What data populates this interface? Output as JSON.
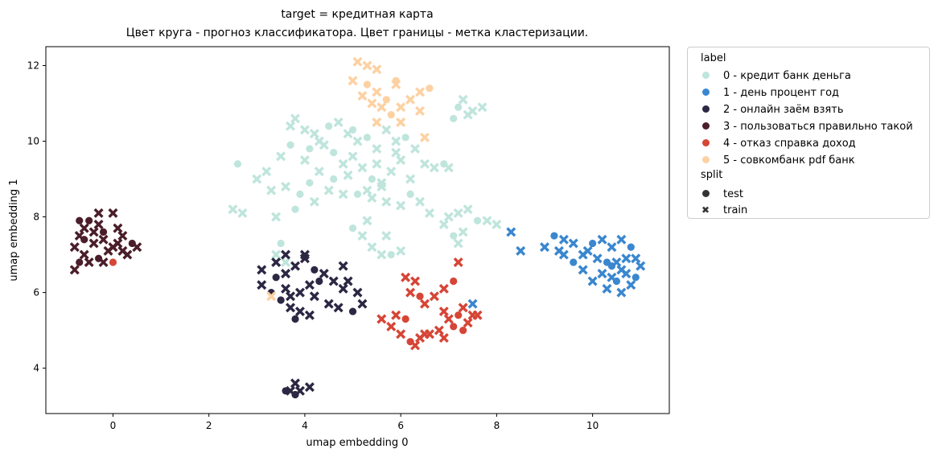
{
  "chart_data": {
    "type": "scatter",
    "title": "target = кредитная карта",
    "subtitle": "Цвет круга - прогноз классификатора. Цвет границы - метка кластеризации.",
    "xlabel": "umap embedding 0",
    "ylabel": "umap embedding 1",
    "xlim": [
      -1.4,
      11.6
    ],
    "ylim": [
      2.8,
      12.5
    ],
    "xticks": [
      "0",
      "2",
      "4",
      "6",
      "8",
      "10"
    ],
    "yticks": [
      "4",
      "6",
      "8",
      "10",
      "12"
    ],
    "grid": false,
    "legend_position": "outside right",
    "legend": {
      "label_title": "label",
      "labels": [
        {
          "text": "0 - кредит банк деньга",
          "color": "#bfe5dc"
        },
        {
          "text": "1 - день процент год",
          "color": "#3a87cf"
        },
        {
          "text": "2 - онлайн заём взять",
          "color": "#2c2743"
        },
        {
          "text": "3 - пользоваться правильно такой",
          "color": "#4a1e2a"
        },
        {
          "text": "4 - отказ справка доход",
          "color": "#d64536"
        },
        {
          "text": "5 - совкомбанк pdf банк",
          "color": "#fdd1a2"
        }
      ],
      "split_title": "split",
      "splits": [
        {
          "text": "test",
          "marker": "circle"
        },
        {
          "text": "train",
          "marker": "x"
        }
      ]
    },
    "series": [
      {
        "name": "0 - кредит банк деньга",
        "color": "#bfe5dc",
        "points": [
          [
            2.6,
            9.4
          ],
          [
            3.0,
            9.0
          ],
          [
            3.2,
            9.2
          ],
          [
            3.5,
            9.6
          ],
          [
            3.7,
            9.9
          ],
          [
            3.8,
            10.6
          ],
          [
            4.0,
            10.3
          ],
          [
            4.2,
            10.2
          ],
          [
            4.5,
            10.4
          ],
          [
            4.7,
            10.5
          ],
          [
            4.9,
            10.2
          ],
          [
            5.1,
            10.0
          ],
          [
            5.3,
            10.1
          ],
          [
            5.5,
            9.8
          ],
          [
            5.7,
            10.3
          ],
          [
            5.9,
            10.0
          ],
          [
            6.1,
            10.1
          ],
          [
            6.3,
            9.8
          ],
          [
            6.5,
            9.4
          ],
          [
            6.7,
            9.3
          ],
          [
            6.9,
            9.4
          ],
          [
            7.0,
            9.3
          ],
          [
            4.0,
            9.5
          ],
          [
            4.3,
            9.2
          ],
          [
            4.6,
            9.0
          ],
          [
            4.8,
            9.4
          ],
          [
            5.0,
            9.6
          ],
          [
            5.2,
            9.3
          ],
          [
            5.4,
            9.0
          ],
          [
            5.6,
            8.8
          ],
          [
            5.8,
            9.2
          ],
          [
            6.0,
            9.5
          ],
          [
            4.1,
            9.8
          ],
          [
            4.4,
            9.9
          ],
          [
            4.9,
            9.1
          ],
          [
            5.3,
            8.7
          ],
          [
            3.9,
            8.6
          ],
          [
            4.2,
            8.4
          ],
          [
            4.5,
            8.7
          ],
          [
            4.8,
            8.6
          ],
          [
            5.1,
            8.6
          ],
          [
            5.4,
            8.5
          ],
          [
            5.7,
            8.4
          ],
          [
            6.0,
            8.3
          ],
          [
            6.2,
            8.6
          ],
          [
            6.4,
            8.4
          ],
          [
            3.6,
            8.8
          ],
          [
            3.3,
            8.7
          ],
          [
            3.8,
            8.2
          ],
          [
            2.5,
            8.2
          ],
          [
            2.7,
            8.1
          ],
          [
            3.4,
            8.0
          ],
          [
            5.0,
            7.7
          ],
          [
            5.2,
            7.5
          ],
          [
            5.4,
            7.2
          ],
          [
            5.6,
            7.0
          ],
          [
            5.8,
            7.0
          ],
          [
            6.0,
            7.1
          ],
          [
            5.3,
            7.9
          ],
          [
            5.7,
            7.5
          ],
          [
            3.5,
            7.3
          ],
          [
            3.4,
            7.0
          ],
          [
            3.6,
            6.8
          ],
          [
            7.3,
            11.1
          ],
          [
            7.2,
            10.9
          ],
          [
            7.5,
            10.8
          ],
          [
            7.7,
            10.9
          ],
          [
            7.4,
            10.7
          ],
          [
            7.1,
            10.6
          ],
          [
            7.0,
            8.0
          ],
          [
            7.2,
            8.1
          ],
          [
            7.4,
            8.2
          ],
          [
            7.6,
            7.9
          ],
          [
            7.8,
            7.9
          ],
          [
            8.0,
            7.8
          ],
          [
            6.9,
            7.8
          ],
          [
            7.1,
            7.5
          ],
          [
            7.3,
            7.6
          ],
          [
            7.2,
            7.3
          ],
          [
            6.6,
            8.1
          ],
          [
            4.6,
            9.7
          ],
          [
            5.5,
            9.4
          ],
          [
            5.9,
            9.7
          ],
          [
            4.3,
            10.0
          ],
          [
            5.0,
            10.3
          ],
          [
            5.6,
            8.9
          ],
          [
            6.2,
            9.0
          ],
          [
            3.7,
            10.4
          ],
          [
            4.1,
            8.9
          ]
        ]
      },
      {
        "name": "1 - день процент год",
        "color": "#3a87cf",
        "points": [
          [
            8.3,
            7.6
          ],
          [
            8.5,
            7.1
          ],
          [
            9.0,
            7.2
          ],
          [
            9.2,
            7.5
          ],
          [
            9.4,
            7.4
          ],
          [
            9.6,
            7.3
          ],
          [
            9.8,
            7.0
          ],
          [
            10.0,
            7.3
          ],
          [
            10.2,
            7.4
          ],
          [
            10.4,
            7.2
          ],
          [
            10.6,
            7.4
          ],
          [
            10.8,
            7.2
          ],
          [
            10.9,
            6.9
          ],
          [
            11.0,
            6.7
          ],
          [
            10.7,
            6.5
          ],
          [
            10.5,
            6.3
          ],
          [
            10.3,
            6.1
          ],
          [
            10.6,
            6.0
          ],
          [
            10.8,
            6.2
          ],
          [
            10.4,
            6.7
          ],
          [
            10.2,
            6.5
          ],
          [
            10.0,
            6.3
          ],
          [
            9.8,
            6.6
          ],
          [
            9.6,
            6.8
          ],
          [
            9.4,
            7.0
          ],
          [
            10.5,
            6.8
          ],
          [
            10.7,
            6.9
          ],
          [
            10.9,
            6.4
          ],
          [
            10.1,
            6.9
          ],
          [
            9.3,
            7.1
          ],
          [
            9.9,
            7.1
          ],
          [
            10.3,
            6.8
          ],
          [
            7.5,
            5.7
          ],
          [
            10.6,
            6.6
          ],
          [
            10.4,
            6.4
          ]
        ]
      },
      {
        "name": "2 - онлайн заём взять",
        "color": "#2c2743",
        "points": [
          [
            3.1,
            6.6
          ],
          [
            3.1,
            6.2
          ],
          [
            3.4,
            6.4
          ],
          [
            3.6,
            6.5
          ],
          [
            3.8,
            6.7
          ],
          [
            4.0,
            6.9
          ],
          [
            4.2,
            6.6
          ],
          [
            4.4,
            6.5
          ],
          [
            4.6,
            6.3
          ],
          [
            4.8,
            6.1
          ],
          [
            4.3,
            6.3
          ],
          [
            4.1,
            6.2
          ],
          [
            3.9,
            6.0
          ],
          [
            3.7,
            5.9
          ],
          [
            3.5,
            5.8
          ],
          [
            3.7,
            5.6
          ],
          [
            3.9,
            5.5
          ],
          [
            4.1,
            5.4
          ],
          [
            3.8,
            5.3
          ],
          [
            3.6,
            6.1
          ],
          [
            4.5,
            5.7
          ],
          [
            4.7,
            5.6
          ],
          [
            5.0,
            5.5
          ],
          [
            5.2,
            5.7
          ],
          [
            4.9,
            6.3
          ],
          [
            5.1,
            6.0
          ],
          [
            3.3,
            6.0
          ],
          [
            4.0,
            7.0
          ],
          [
            4.8,
            6.7
          ],
          [
            3.7,
            3.4
          ],
          [
            3.8,
            3.3
          ],
          [
            3.9,
            3.4
          ],
          [
            3.8,
            3.6
          ],
          [
            4.1,
            3.5
          ],
          [
            3.6,
            3.4
          ],
          [
            4.2,
            5.9
          ],
          [
            3.4,
            6.8
          ],
          [
            3.6,
            7.0
          ]
        ]
      },
      {
        "name": "3 - пользоваться правильно такой",
        "color": "#4a1e2a",
        "points": [
          [
            -0.8,
            6.6
          ],
          [
            -0.7,
            6.8
          ],
          [
            -0.8,
            7.2
          ],
          [
            -0.7,
            7.5
          ],
          [
            -0.6,
            7.7
          ],
          [
            -0.5,
            7.9
          ],
          [
            -0.3,
            8.1
          ],
          [
            0.0,
            8.1
          ],
          [
            0.1,
            7.7
          ],
          [
            -0.2,
            7.6
          ],
          [
            -0.4,
            7.3
          ],
          [
            -0.6,
            7.0
          ],
          [
            -0.5,
            6.8
          ],
          [
            -0.3,
            6.9
          ],
          [
            -0.1,
            7.1
          ],
          [
            0.1,
            7.3
          ],
          [
            0.2,
            7.5
          ],
          [
            0.4,
            7.3
          ],
          [
            0.5,
            7.2
          ],
          [
            0.3,
            7.0
          ],
          [
            -0.2,
            6.8
          ],
          [
            -0.6,
            7.4
          ],
          [
            -0.4,
            7.6
          ],
          [
            -0.2,
            7.4
          ],
          [
            0.0,
            7.2
          ],
          [
            -0.7,
            7.9
          ],
          [
            0.2,
            7.1
          ],
          [
            -0.3,
            7.8
          ]
        ]
      },
      {
        "name": "4 - отказ справка доход",
        "color": "#d64536",
        "points": [
          [
            0.0,
            6.8
          ],
          [
            6.1,
            6.4
          ],
          [
            6.3,
            6.3
          ],
          [
            6.2,
            6.0
          ],
          [
            6.4,
            5.9
          ],
          [
            6.5,
            5.7
          ],
          [
            6.7,
            5.9
          ],
          [
            6.9,
            6.1
          ],
          [
            7.1,
            6.3
          ],
          [
            7.2,
            6.8
          ],
          [
            6.9,
            5.5
          ],
          [
            7.0,
            5.3
          ],
          [
            7.2,
            5.4
          ],
          [
            7.3,
            5.6
          ],
          [
            7.4,
            5.2
          ],
          [
            7.5,
            5.4
          ],
          [
            7.1,
            5.1
          ],
          [
            6.8,
            5.0
          ],
          [
            6.6,
            4.9
          ],
          [
            6.4,
            4.8
          ],
          [
            6.2,
            4.7
          ],
          [
            6.0,
            4.9
          ],
          [
            5.8,
            5.1
          ],
          [
            5.9,
            5.4
          ],
          [
            6.1,
            5.3
          ],
          [
            6.3,
            4.6
          ],
          [
            6.5,
            4.9
          ],
          [
            6.9,
            4.8
          ],
          [
            7.3,
            5.0
          ],
          [
            5.6,
            5.3
          ],
          [
            7.6,
            5.4
          ]
        ]
      },
      {
        "name": "5 - совкомбанк pdf банк",
        "color": "#fdd1a2",
        "points": [
          [
            5.1,
            12.1
          ],
          [
            5.3,
            12.0
          ],
          [
            5.5,
            11.9
          ],
          [
            5.3,
            11.5
          ],
          [
            5.5,
            11.3
          ],
          [
            5.4,
            11.0
          ],
          [
            5.6,
            10.9
          ],
          [
            5.8,
            10.7
          ],
          [
            6.0,
            10.9
          ],
          [
            6.2,
            11.1
          ],
          [
            6.4,
            11.3
          ],
          [
            6.6,
            11.4
          ],
          [
            5.9,
            11.5
          ],
          [
            5.2,
            11.2
          ],
          [
            5.0,
            11.6
          ],
          [
            5.7,
            11.1
          ],
          [
            6.0,
            10.5
          ],
          [
            6.4,
            10.8
          ],
          [
            5.5,
            10.5
          ],
          [
            5.9,
            11.6
          ],
          [
            6.5,
            10.1
          ],
          [
            3.3,
            5.9
          ]
        ]
      }
    ]
  }
}
